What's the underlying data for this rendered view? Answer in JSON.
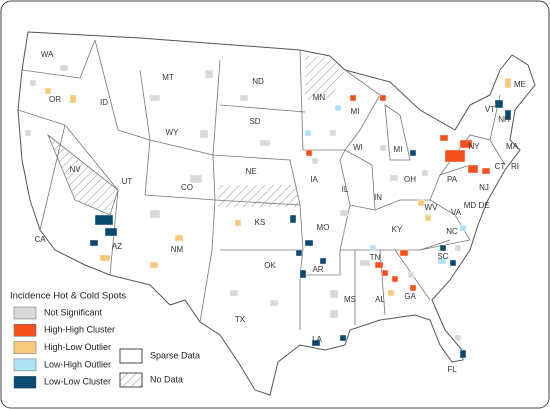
{
  "map": {
    "state_labels": [
      "WA",
      "OR",
      "CA",
      "NV",
      "ID",
      "MT",
      "WY",
      "UT",
      "CO",
      "AZ",
      "NM",
      "ND",
      "SD",
      "NE",
      "KS",
      "OK",
      "TX",
      "MN",
      "IA",
      "MO",
      "AR",
      "LA",
      "WI",
      "MI",
      "MI",
      "IL",
      "IN",
      "OH",
      "KY",
      "TN",
      "MS",
      "AL",
      "GA",
      "FL",
      "SC",
      "NC",
      "VA",
      "WV",
      "PA",
      "NY",
      "VT",
      "NH",
      "ME",
      "MA",
      "CT",
      "RI",
      "NJ",
      "MD",
      "DE"
    ],
    "legend": {
      "title": "Incidence Hot & Cold Spots",
      "items": [
        {
          "label": "Not Significant",
          "color": "#d9d9d9"
        },
        {
          "label": "High-High Cluster",
          "color": "#f4511e"
        },
        {
          "label": "High-Low Outlier",
          "color": "#f9c97a"
        },
        {
          "label": "Low-High Outlier",
          "color": "#aee3f5"
        },
        {
          "label": "Low-Low Cluster",
          "color": "#0b4a70"
        }
      ],
      "sparse_data": "Sparse Data",
      "no_data": "No Data"
    }
  }
}
